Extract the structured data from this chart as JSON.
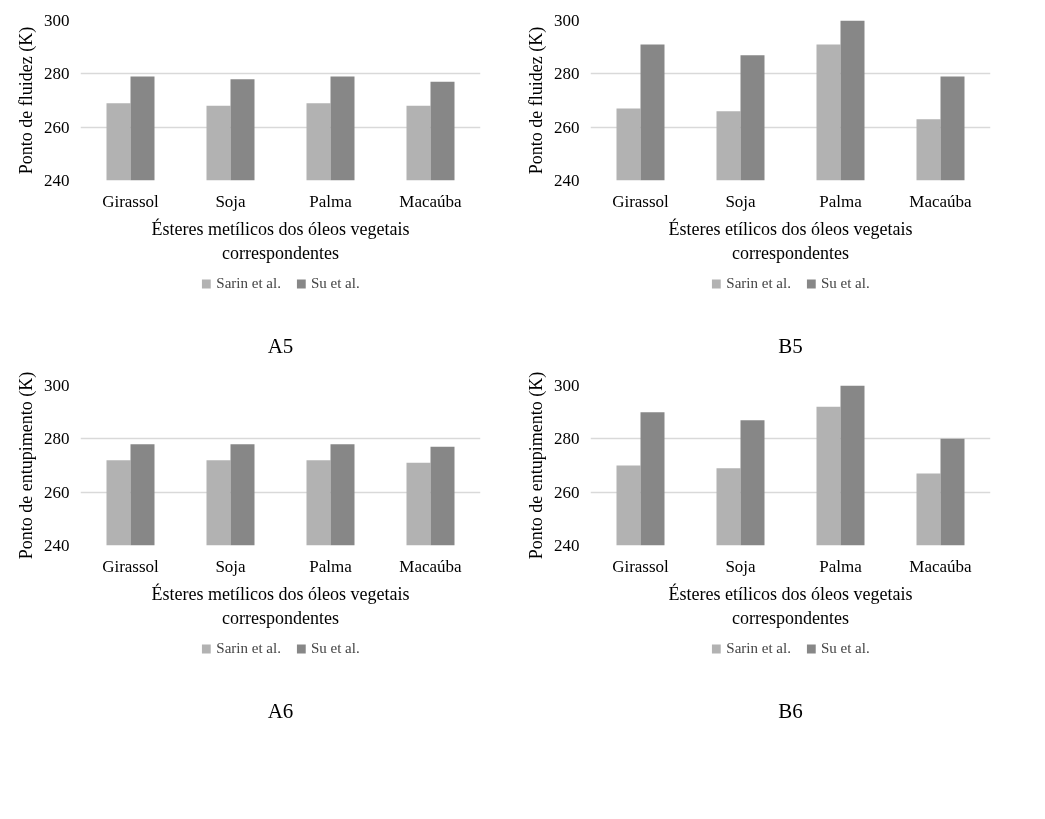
{
  "chart_data": [
    {
      "type": "bar",
      "title": "A5",
      "xlabel": "Ésteres metílicos dos óleos vegetais correspondentes",
      "ylabel": "Ponto de fluidez (K)",
      "categories": [
        "Girassol",
        "Soja",
        "Palma",
        "Macaúba"
      ],
      "series": [
        {
          "name": "Sarin et al.",
          "color": "#b2b2b2",
          "values": [
            269,
            268,
            269,
            268
          ]
        },
        {
          "name": "Su et al.",
          "color": "#878787",
          "values": [
            279,
            278,
            279,
            277
          ]
        }
      ],
      "ylim": [
        240,
        300
      ],
      "yticks": [
        240,
        260,
        280,
        300
      ],
      "grid": "y",
      "legend": "bottom"
    },
    {
      "type": "bar",
      "title": "B5",
      "xlabel": "Ésteres etílicos dos óleos vegetais correspondentes",
      "ylabel": "Ponto de fluidez (K)",
      "categories": [
        "Girassol",
        "Soja",
        "Palma",
        "Macaúba"
      ],
      "series": [
        {
          "name": "Sarin et al.",
          "color": "#b2b2b2",
          "values": [
            267,
            266,
            291,
            263
          ]
        },
        {
          "name": "Su et al.",
          "color": "#878787",
          "values": [
            291,
            287,
            300,
            279
          ]
        }
      ],
      "ylim": [
        240,
        300
      ],
      "yticks": [
        240,
        260,
        280,
        300
      ],
      "grid": "y",
      "legend": "bottom"
    },
    {
      "type": "bar",
      "title": "A6",
      "xlabel": "Ésteres metílicos dos óleos vegetais correspondentes",
      "ylabel": "Ponto de entupimento (K)",
      "categories": [
        "Girassol",
        "Soja",
        "Palma",
        "Macaúba"
      ],
      "series": [
        {
          "name": "Sarin et al.",
          "color": "#b2b2b2",
          "values": [
            272,
            272,
            272,
            271
          ]
        },
        {
          "name": "Su et al.",
          "color": "#878787",
          "values": [
            278,
            278,
            278,
            277
          ]
        }
      ],
      "ylim": [
        240,
        300
      ],
      "yticks": [
        240,
        260,
        280,
        300
      ],
      "grid": "y",
      "legend": "bottom"
    },
    {
      "type": "bar",
      "title": "B6",
      "xlabel": "Ésteres etílicos dos óleos vegetais correspondentes",
      "ylabel": "Ponto de entupimento (K)",
      "categories": [
        "Girassol",
        "Soja",
        "Palma",
        "Macaúba"
      ],
      "series": [
        {
          "name": "Sarin et al.",
          "color": "#b2b2b2",
          "values": [
            270,
            269,
            292,
            267
          ]
        },
        {
          "name": "Su et al.",
          "color": "#878787",
          "values": [
            290,
            287,
            300,
            280
          ]
        }
      ],
      "ylim": [
        240,
        300
      ],
      "yticks": [
        240,
        260,
        280,
        300
      ],
      "grid": "y",
      "legend": "bottom"
    }
  ]
}
